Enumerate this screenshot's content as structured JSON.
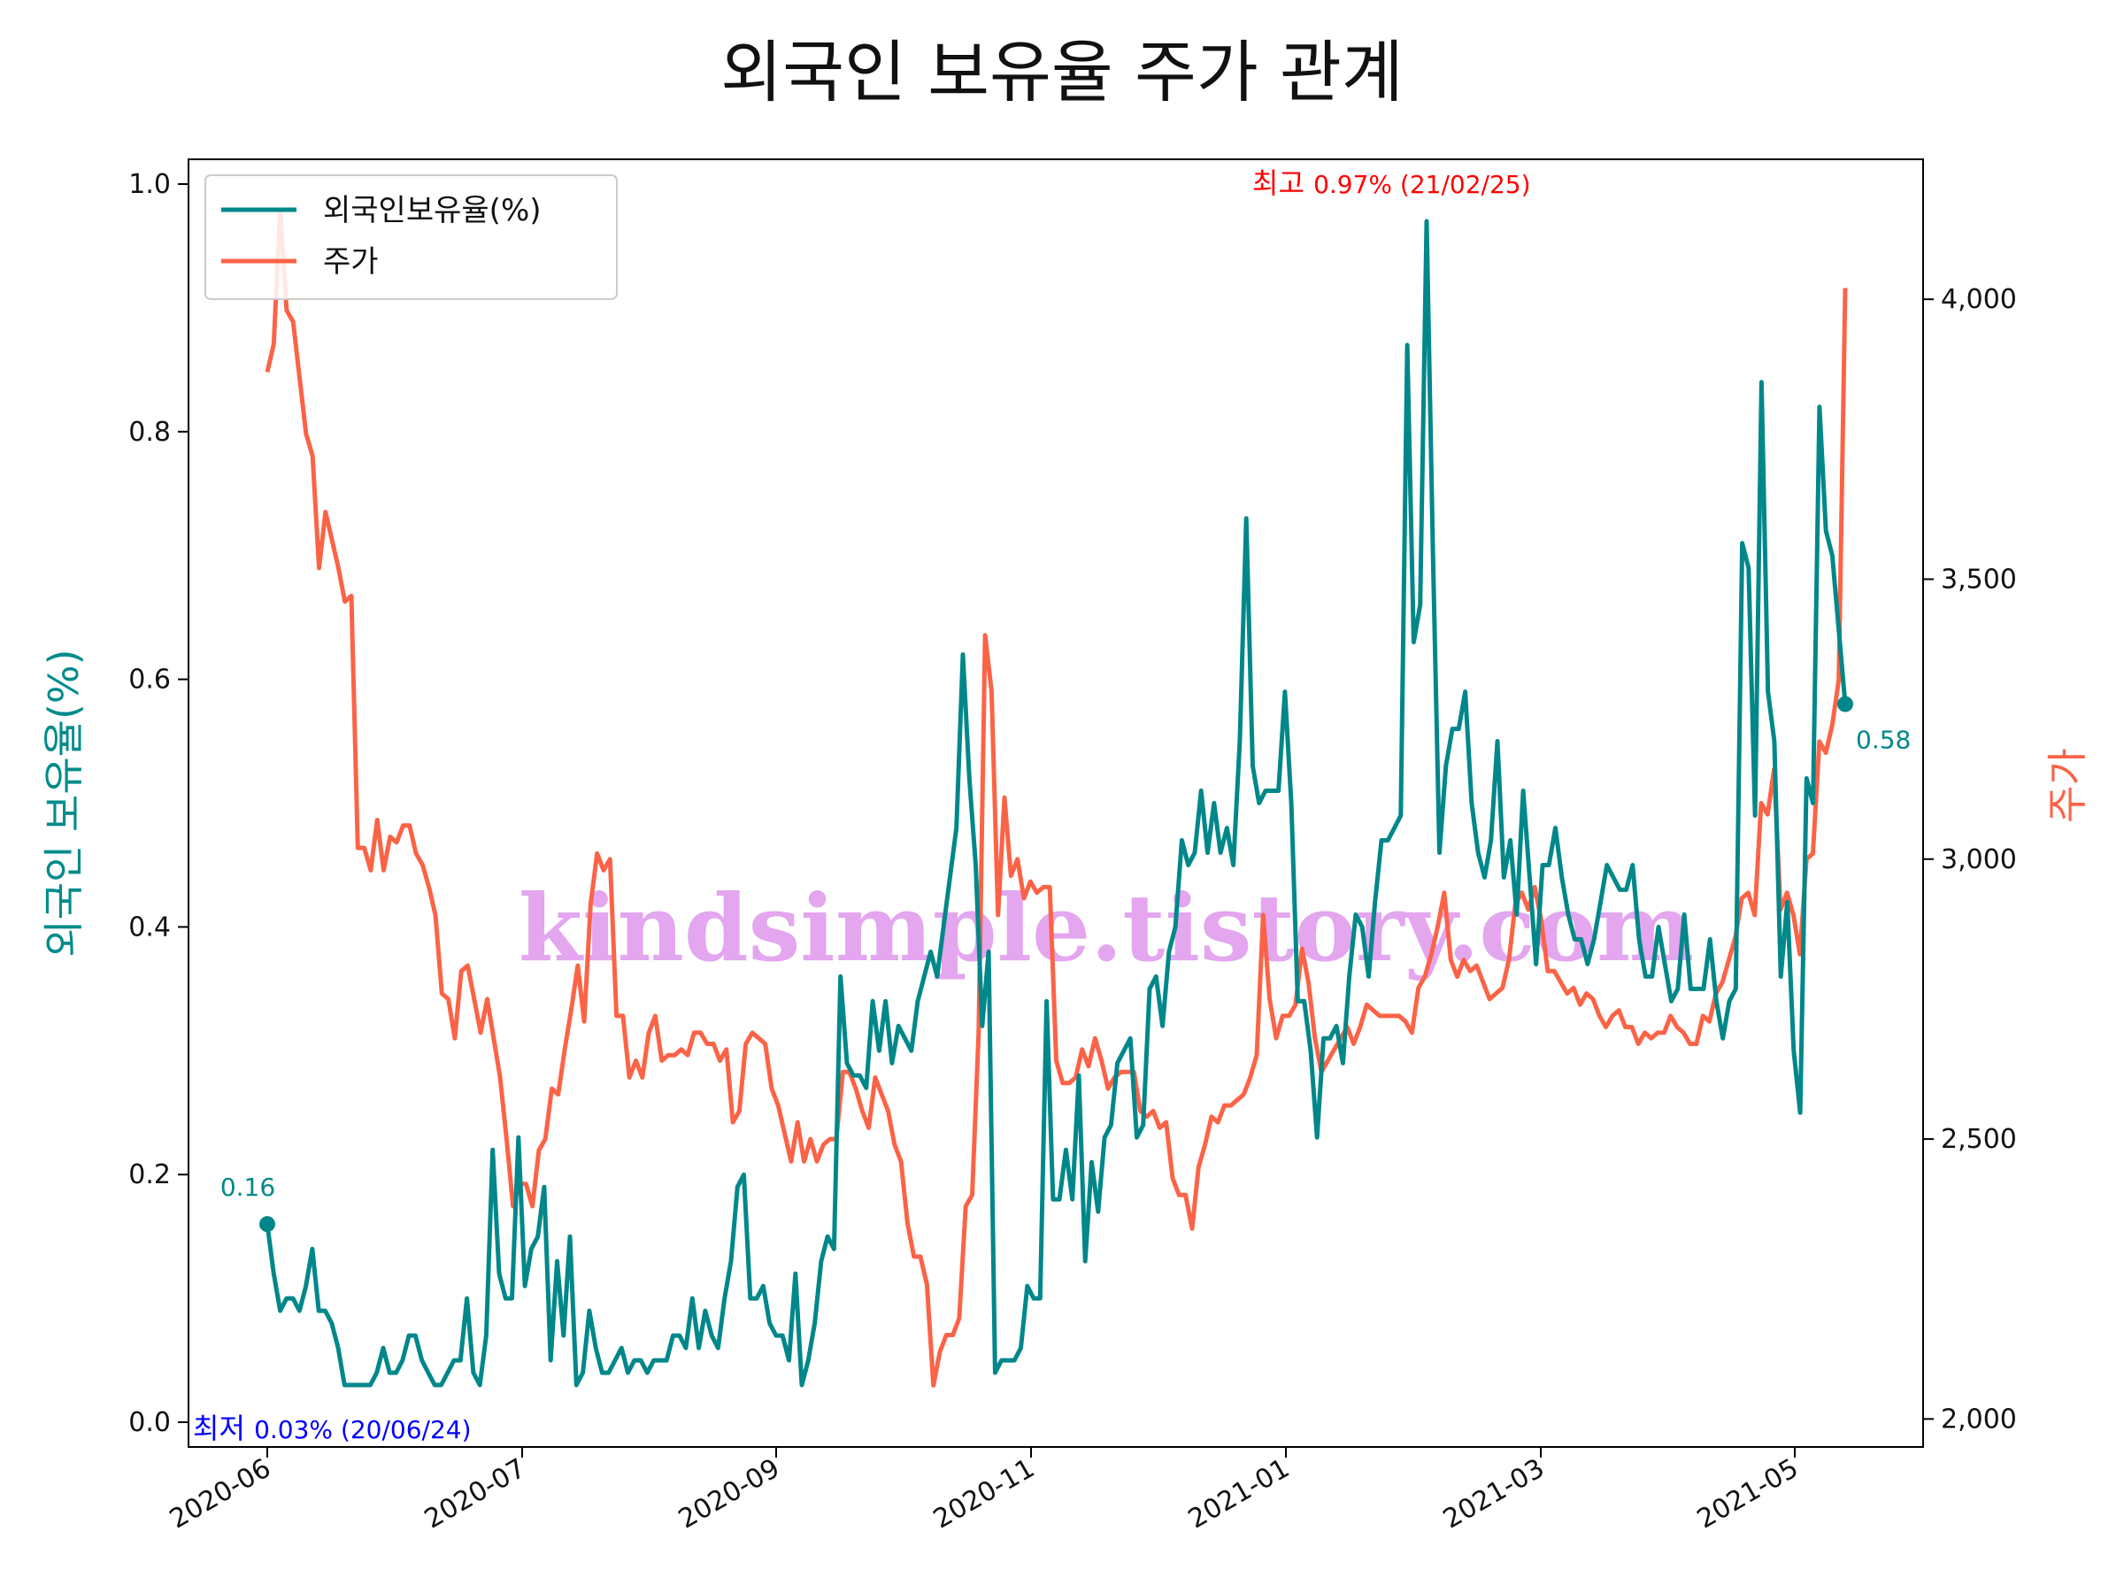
{
  "chart_data": {
    "type": "line",
    "title": "외국인 보유율 주가 관계",
    "ylabel": "외국인 보유율(%)",
    "ylabel_right": "주가",
    "ylim": [
      -0.02,
      1.02
    ],
    "ylim_right": [
      1950,
      4250
    ],
    "yticks": [
      "0.0",
      "0.2",
      "0.4",
      "0.6",
      "0.8",
      "1.0"
    ],
    "yticks_right": [
      "2,000",
      "2,500",
      "3,000",
      "3,500",
      "4,000"
    ],
    "xticks": [
      "2020-06",
      "2020-07",
      "2020-09",
      "2020-11",
      "2021-01",
      "2021-03",
      "2021-05"
    ],
    "legend_placement": "top-left",
    "grid": false,
    "series": [
      {
        "name": "외국인보유율(%)",
        "color": "#00878a",
        "axis": "left",
        "values": [
          0.16,
          0.12,
          0.09,
          0.1,
          0.1,
          0.09,
          0.11,
          0.14,
          0.09,
          0.09,
          0.08,
          0.06,
          0.03,
          0.03,
          0.03,
          0.03,
          0.03,
          0.04,
          0.06,
          0.04,
          0.04,
          0.05,
          0.07,
          0.07,
          0.05,
          0.04,
          0.03,
          0.03,
          0.04,
          0.05,
          0.05,
          0.1,
          0.04,
          0.03,
          0.07,
          0.22,
          0.12,
          0.1,
          0.1,
          0.23,
          0.11,
          0.14,
          0.15,
          0.19,
          0.05,
          0.13,
          0.07,
          0.15,
          0.03,
          0.04,
          0.09,
          0.06,
          0.04,
          0.04,
          0.05,
          0.06,
          0.04,
          0.05,
          0.05,
          0.04,
          0.05,
          0.05,
          0.05,
          0.07,
          0.07,
          0.06,
          0.1,
          0.06,
          0.09,
          0.07,
          0.06,
          0.1,
          0.13,
          0.19,
          0.2,
          0.1,
          0.1,
          0.11,
          0.08,
          0.07,
          0.07,
          0.05,
          0.12,
          0.03,
          0.05,
          0.08,
          0.13,
          0.15,
          0.14,
          0.36,
          0.29,
          0.28,
          0.28,
          0.27,
          0.34,
          0.3,
          0.34,
          0.29,
          0.32,
          0.31,
          0.3,
          0.34,
          0.36,
          0.38,
          0.36,
          0.4,
          0.44,
          0.48,
          0.62,
          0.52,
          0.45,
          0.32,
          0.38,
          0.04,
          0.05,
          0.05,
          0.05,
          0.06,
          0.11,
          0.1,
          0.1,
          0.34,
          0.18,
          0.18,
          0.22,
          0.18,
          0.28,
          0.13,
          0.21,
          0.17,
          0.23,
          0.24,
          0.29,
          0.3,
          0.31,
          0.23,
          0.24,
          0.35,
          0.36,
          0.32,
          0.38,
          0.4,
          0.47,
          0.45,
          0.46,
          0.51,
          0.46,
          0.5,
          0.46,
          0.48,
          0.45,
          0.55,
          0.73,
          0.53,
          0.5,
          0.51,
          0.51,
          0.51,
          0.59,
          0.5,
          0.34,
          0.34,
          0.3,
          0.23,
          0.31,
          0.31,
          0.32,
          0.29,
          0.36,
          0.41,
          0.4,
          0.36,
          0.42,
          0.47,
          0.47,
          0.48,
          0.49,
          0.87,
          0.63,
          0.66,
          0.97,
          0.7,
          0.46,
          0.53,
          0.56,
          0.56,
          0.59,
          0.5,
          0.46,
          0.44,
          0.47,
          0.55,
          0.44,
          0.47,
          0.41,
          0.51,
          0.44,
          0.37,
          0.45,
          0.45,
          0.48,
          0.44,
          0.41,
          0.39,
          0.39,
          0.37,
          0.39,
          0.42,
          0.45,
          0.44,
          0.43,
          0.43,
          0.45,
          0.39,
          0.36,
          0.36,
          0.4,
          0.37,
          0.34,
          0.35,
          0.41,
          0.35,
          0.35,
          0.35,
          0.39,
          0.34,
          0.31,
          0.34,
          0.35,
          0.71,
          0.69,
          0.49,
          0.84,
          0.59,
          0.55,
          0.36,
          0.42,
          0.3,
          0.25,
          0.52,
          0.5,
          0.82,
          0.72,
          0.7,
          0.64,
          0.58
        ]
      },
      {
        "name": "주가",
        "color": "#fb6347",
        "axis": "right",
        "values": [
          3870,
          3920,
          4160,
          3980,
          3960,
          3860,
          3760,
          3720,
          3520,
          3620,
          3570,
          3520,
          3460,
          3470,
          3020,
          3020,
          2980,
          3070,
          2980,
          3040,
          3030,
          3060,
          3060,
          3010,
          2990,
          2950,
          2900,
          2760,
          2750,
          2680,
          2800,
          2810,
          2750,
          2690,
          2750,
          2680,
          2610,
          2500,
          2380,
          2420,
          2420,
          2380,
          2480,
          2500,
          2590,
          2580,
          2660,
          2730,
          2810,
          2710,
          2920,
          3010,
          2980,
          3000,
          2720,
          2720,
          2610,
          2640,
          2610,
          2690,
          2720,
          2640,
          2650,
          2650,
          2660,
          2650,
          2690,
          2690,
          2670,
          2670,
          2640,
          2660,
          2530,
          2550,
          2670,
          2690,
          2680,
          2670,
          2590,
          2560,
          2510,
          2460,
          2530,
          2460,
          2500,
          2460,
          2490,
          2500,
          2500,
          2620,
          2620,
          2590,
          2550,
          2520,
          2610,
          2580,
          2550,
          2490,
          2460,
          2350,
          2290,
          2290,
          2240,
          2060,
          2120,
          2150,
          2150,
          2180,
          2380,
          2400,
          2690,
          3400,
          3300,
          2900,
          3110,
          2970,
          3000,
          2930,
          2960,
          2940,
          2950,
          2950,
          2640,
          2600,
          2600,
          2610,
          2660,
          2630,
          2680,
          2640,
          2590,
          2610,
          2620,
          2620,
          2620,
          2550,
          2540,
          2550,
          2520,
          2530,
          2430,
          2400,
          2400,
          2340,
          2450,
          2490,
          2540,
          2530,
          2560,
          2560,
          2570,
          2580,
          2610,
          2650,
          2900,
          2750,
          2680,
          2720,
          2720,
          2740,
          2840,
          2780,
          2680,
          2620,
          2640,
          2660,
          2680,
          2700,
          2670,
          2700,
          2740,
          2730,
          2720,
          2720,
          2720,
          2720,
          2710,
          2690,
          2770,
          2790,
          2830,
          2880,
          2940,
          2820,
          2790,
          2820,
          2800,
          2810,
          2780,
          2750,
          2760,
          2770,
          2820,
          2920,
          2940,
          2910,
          2950,
          2890,
          2800,
          2800,
          2780,
          2760,
          2770,
          2740,
          2760,
          2750,
          2720,
          2700,
          2720,
          2730,
          2700,
          2700,
          2670,
          2690,
          2680,
          2690,
          2690,
          2720,
          2700,
          2690,
          2670,
          2670,
          2720,
          2710,
          2760,
          2780,
          2820,
          2860,
          2930,
          2940,
          2900,
          3100,
          3080,
          3160,
          2910,
          2940,
          2900,
          2830,
          3000,
          3010,
          3210,
          3190,
          3240,
          3320,
          4020
        ]
      }
    ],
    "annotations": {
      "max_prefix": "최고",
      "max_value": "0.97% (21/02/25)",
      "min_prefix": "최저",
      "min_value": "0.03% (20/06/24)",
      "start_label": "0.16",
      "end_label": "0.58"
    },
    "colors": {
      "max_text": "#ff0000",
      "min_text": "#0000ff",
      "left_axis_label": "#008b8b",
      "right_axis_label": "#fb6347"
    }
  },
  "watermark": "kindsimple.tistory.com"
}
